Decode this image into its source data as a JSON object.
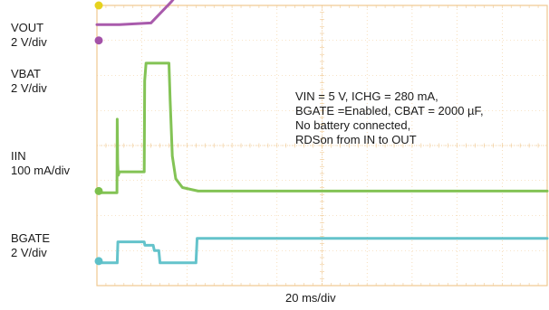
{
  "chart_data": {
    "type": "line",
    "title": "",
    "xlabel": "20 ms/div",
    "ylabel": "",
    "x_divisions": 10,
    "y_divisions": 8,
    "x_units": "ms",
    "x_range": [
      0,
      200
    ],
    "grid": true,
    "annotation": [
      "VIN = 5 V, ICHG = 280 mA,",
      "BGATE =Enabled, CBAT = 2000 µF,",
      "No battery connected,",
      "RDSon from IN to OUT"
    ],
    "series": [
      {
        "name": "VOUT",
        "label": "VOUT",
        "scale": "2 V/div",
        "color": "#e6d21e",
        "ref_div": 4.0,
        "x": [
          0,
          8,
          9,
          24,
          33,
          38,
          100,
          200
        ],
        "y": [
          4.55,
          4.55,
          4.95,
          4.95,
          5.05,
          5.45,
          5.45,
          5.45
        ]
      },
      {
        "name": "VBAT",
        "label": "VBAT",
        "scale": "2 V/div",
        "color": "#a452a8",
        "ref_div": 3.0,
        "x": [
          0,
          10,
          24,
          33,
          38,
          100,
          200
        ],
        "y": [
          3.45,
          3.45,
          3.5,
          4.1,
          4.5,
          4.55,
          4.55
        ]
      },
      {
        "name": "IIN",
        "label": "IIN",
        "scale": "100 mA/div",
        "color": "#7cc04c",
        "ref_div": -1.3,
        "x": [
          0,
          8.9,
          9.0,
          9.2,
          9.5,
          10,
          21,
          21.2,
          21.8,
          22.5,
          32,
          32.5,
          33.5,
          35,
          38,
          45,
          100,
          200
        ],
        "y": [
          -1.35,
          -1.35,
          0.75,
          -0.5,
          -0.85,
          -0.75,
          -0.75,
          1.85,
          2.35,
          2.35,
          2.35,
          1.3,
          -0.3,
          -0.95,
          -1.2,
          -1.3,
          -1.3,
          -1.3
        ]
      },
      {
        "name": "BGATE",
        "label": "BGATE",
        "scale": "2 V/div",
        "color": "#5cc0c8",
        "ref_div": -3.3,
        "x": [
          0,
          9,
          9.3,
          21,
          21.3,
          25,
          25.5,
          27.5,
          28,
          44,
          44.5,
          200
        ],
        "y": [
          -3.35,
          -3.35,
          -2.75,
          -2.75,
          -2.85,
          -2.85,
          -3.0,
          -3.0,
          -3.35,
          -3.35,
          -2.65,
          -2.65
        ]
      }
    ]
  }
}
